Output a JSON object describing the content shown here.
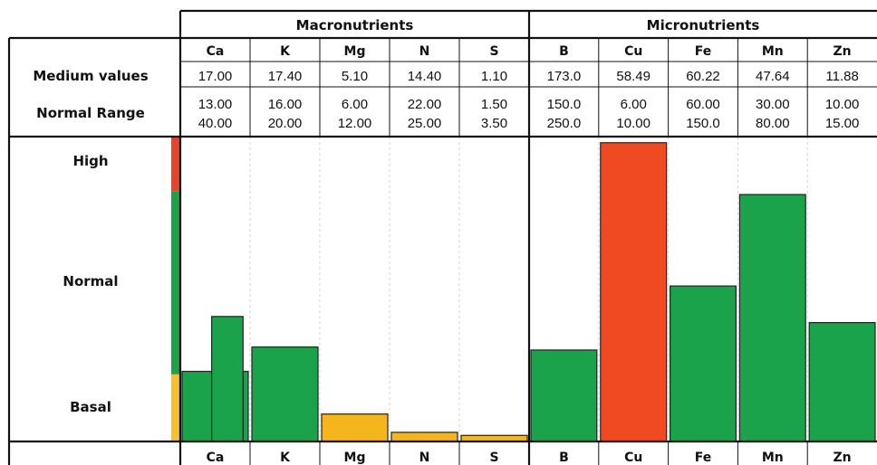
{
  "chart_data": {
    "type": "bar",
    "groups": [
      {
        "label": "Macronutrients",
        "nutrients": [
          "Ca",
          "K",
          "Mg",
          "N",
          "S"
        ]
      },
      {
        "label": "Micronutrients",
        "nutrients": [
          "B",
          "Cu",
          "Fe",
          "Mn",
          "Zn"
        ]
      }
    ],
    "rows": {
      "medium_label": "Medium values",
      "range_label": "Normal Range"
    },
    "nutrients": [
      {
        "name": "Ca",
        "medium": "17.00",
        "range_low": "13.00",
        "range_high": "40.00",
        "level": 0.23,
        "color": "#1aa34a"
      },
      {
        "name": "K",
        "medium": "17.40",
        "range_low": "16.00",
        "range_high": "20.00",
        "level": 0.31,
        "color": "#1aa34a"
      },
      {
        "name": "Mg",
        "medium": "5.10",
        "range_low": "6.00",
        "range_high": "12.00",
        "level": 0.09,
        "color": "#f5b51d"
      },
      {
        "name": "N",
        "medium": "14.40",
        "range_low": "22.00",
        "range_high": "25.00",
        "level": 0.03,
        "color": "#f5b51d"
      },
      {
        "name": "S",
        "medium": "1.10",
        "range_low": "1.50",
        "range_high": "3.50",
        "level": 0.02,
        "color": "#f5b51d"
      },
      {
        "name": "B",
        "medium": "173.0",
        "range_low": "150.0",
        "range_high": "250.0",
        "level": 0.3,
        "color": "#1aa34a"
      },
      {
        "name": "Cu",
        "medium": "58.49",
        "range_low": "6.00",
        "range_high": "10.00",
        "level": 0.98,
        "color": "#f04a23"
      },
      {
        "name": "Fe",
        "medium": "60.22",
        "range_low": "60.00",
        "range_high": "150.0",
        "level": 0.51,
        "color": "#1aa34a"
      },
      {
        "name": "Mn",
        "medium": "47.64",
        "range_low": "30.00",
        "range_high": "80.00",
        "level": 0.81,
        "color": "#1aa34a"
      },
      {
        "name": "Zn",
        "medium": "11.88",
        "range_low": "10.00",
        "range_high": "15.00",
        "level": 0.39,
        "color": "#1aa34a"
      }
    ],
    "extra_bar": {
      "nutrient": "Ca",
      "level": 0.41,
      "color": "#1aa34a"
    },
    "zones": [
      {
        "label": "High",
        "color": "#e9432a"
      },
      {
        "label": "Normal",
        "color": "#1aa34a"
      },
      {
        "label": "Basal",
        "color": "#f7c12b"
      }
    ],
    "zone_fractions": [
      0.18,
      0.6,
      0.22
    ]
  }
}
